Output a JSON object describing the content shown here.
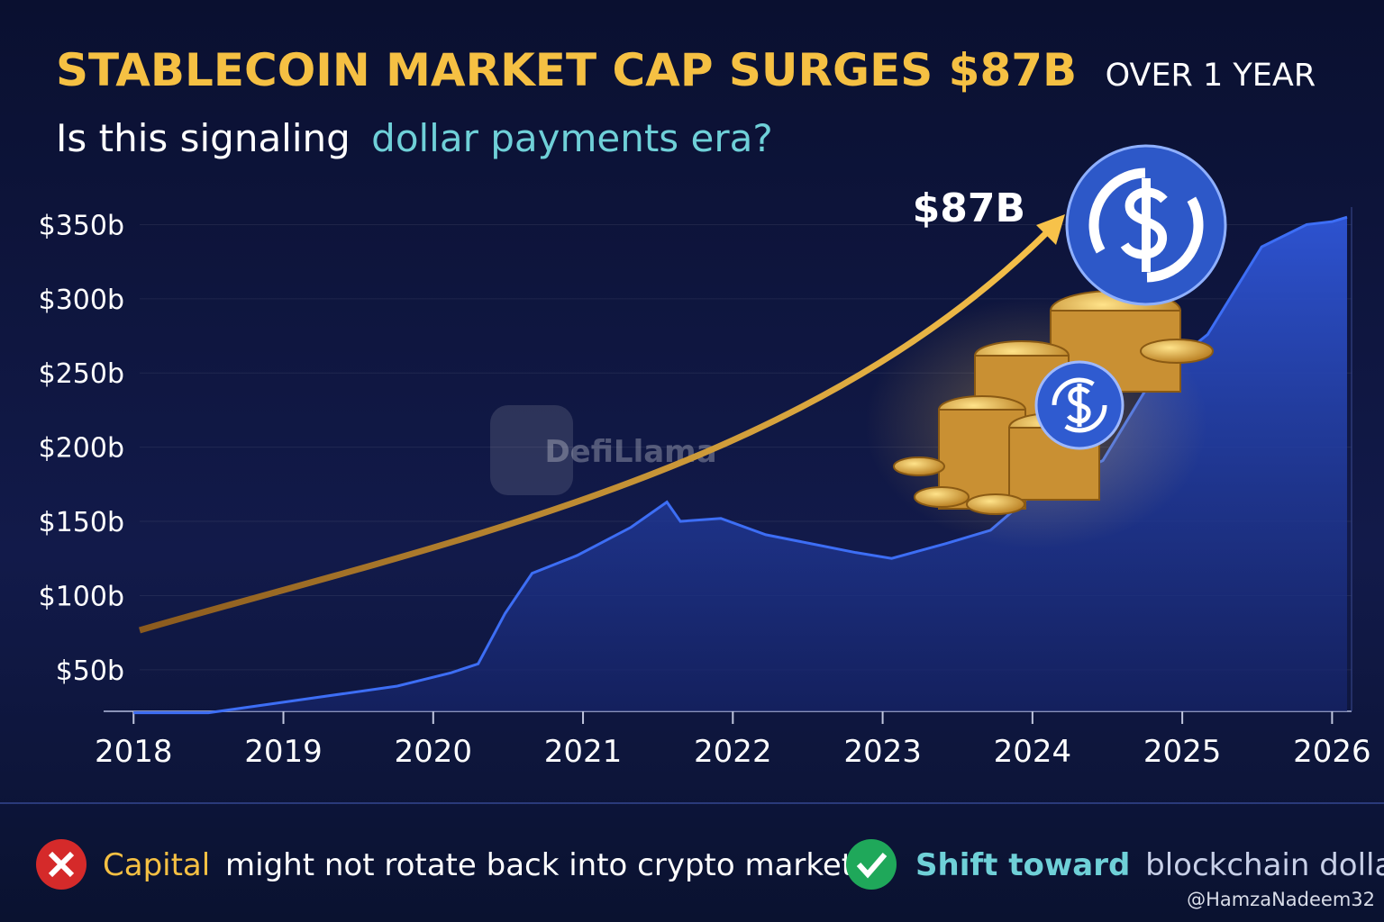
{
  "chart_data": {
    "type": "area",
    "title": "STABLECOIN MARKET CAP SURGES $87B",
    "title_suffix": "OVER 1 YEAR",
    "subtitle": [
      "Is this signaling",
      "dollar payments era?"
    ],
    "annotation": "$87B",
    "watermark": "DefiLlama",
    "color": "#3d6ef5",
    "x": [
      2018.0,
      2018.5,
      2018.92,
      2019.76,
      2020.12,
      2020.3,
      2020.48,
      2020.66,
      2020.96,
      2021.32,
      2021.56,
      2021.65,
      2021.92,
      2022.22,
      2022.52,
      2022.82,
      2023.06,
      2023.42,
      2023.72,
      2024.02,
      2024.47,
      2024.8,
      2025.17,
      2025.53,
      2025.83,
      2026.0,
      2026.1
    ],
    "values": [
      21,
      21,
      27,
      39,
      48,
      54,
      88,
      115,
      127,
      146,
      163,
      150,
      152,
      141,
      135,
      129,
      125,
      135,
      144,
      170,
      191,
      246,
      276,
      335,
      350,
      352,
      355
    ],
    "xlim": [
      2017.8,
      2026.13
    ],
    "xticks": [
      2018,
      2019,
      2020,
      2021,
      2022,
      2023,
      2024,
      2025,
      2026
    ],
    "ylim": [
      22,
      380
    ],
    "yticks": [
      {
        "value": 50,
        "label": "$50b"
      },
      {
        "value": 100,
        "label": "$100b"
      },
      {
        "value": 150,
        "label": "$150b"
      },
      {
        "value": 200,
        "label": "$200b"
      },
      {
        "value": 250,
        "label": "$250b"
      },
      {
        "value": 300,
        "label": "$300b"
      },
      {
        "value": 350,
        "label": "$350b"
      }
    ],
    "grid": true
  },
  "footer": {
    "con": [
      "Capital",
      "might not rotate back into crypto market"
    ],
    "pro": [
      "Shift toward",
      "blockchain dollar payments"
    ],
    "credit": "@HamzaNadeem32"
  }
}
